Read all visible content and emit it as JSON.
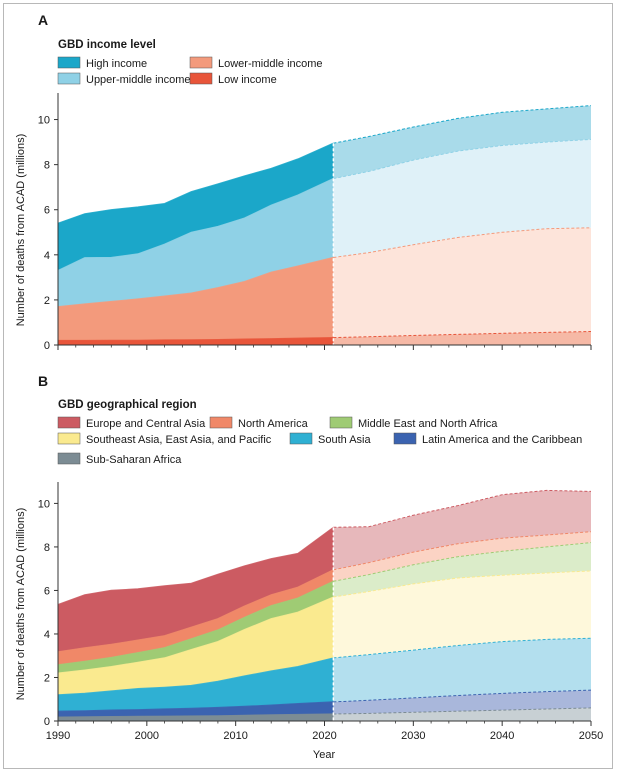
{
  "chart_data": [
    {
      "panel": "A",
      "type": "area",
      "stacked": true,
      "legend_title": "GBD income level",
      "ylabel": "Number of deaths from ACAD (millions)",
      "ylim": [
        0,
        11
      ],
      "yticks": [
        "0",
        "2",
        "4",
        "6",
        "8",
        "10"
      ],
      "projection_start": 2021,
      "x": [
        1990,
        1993,
        1996,
        1999,
        2002,
        2005,
        2008,
        2011,
        2014,
        2017,
        2021,
        2025,
        2030,
        2035,
        2040,
        2045,
        2050
      ],
      "series": [
        {
          "name": "Low income",
          "color": "#e8553a",
          "projection_color": "#f6b9a6",
          "values": [
            0.2,
            0.2,
            0.21,
            0.21,
            0.22,
            0.23,
            0.24,
            0.26,
            0.28,
            0.3,
            0.33,
            0.37,
            0.42,
            0.47,
            0.52,
            0.56,
            0.6
          ]
        },
        {
          "name": "Lower-middle income",
          "color": "#f39a7c",
          "projection_color": "#fde4da",
          "values": [
            1.5,
            1.62,
            1.72,
            1.83,
            1.95,
            2.07,
            2.3,
            2.55,
            2.95,
            3.2,
            3.55,
            3.73,
            4.03,
            4.3,
            4.48,
            4.6,
            4.6
          ]
        },
        {
          "name": "Upper-middle income",
          "color": "#8fd1e6",
          "projection_color": "#dff1f8",
          "values": [
            1.6,
            2.05,
            1.95,
            2.0,
            2.3,
            2.7,
            2.72,
            2.82,
            2.97,
            3.15,
            3.5,
            3.6,
            3.75,
            3.83,
            3.85,
            3.84,
            3.92
          ]
        },
        {
          "name": "High income",
          "color": "#1ba7c9",
          "projection_color": "#a9dbea",
          "values": [
            2.1,
            1.95,
            2.12,
            2.08,
            1.8,
            1.8,
            1.88,
            1.87,
            1.63,
            1.6,
            1.57,
            1.55,
            1.47,
            1.45,
            1.47,
            1.47,
            1.5
          ]
        }
      ]
    },
    {
      "panel": "B",
      "type": "area",
      "stacked": true,
      "legend_title": "GBD geographical region",
      "xlabel": "Year",
      "ylabel": "Number of deaths from ACAD (millions)",
      "ylim": [
        0,
        10.8
      ],
      "yticks": [
        "0",
        "2",
        "4",
        "6",
        "8",
        "10"
      ],
      "xticks": [
        "1990",
        "2000",
        "2010",
        "2020",
        "2030",
        "2040",
        "2050"
      ],
      "projection_start": 2021,
      "x": [
        1990,
        1993,
        1996,
        1999,
        2002,
        2005,
        2008,
        2011,
        2014,
        2017,
        2021,
        2025,
        2030,
        2035,
        2040,
        2045,
        2050
      ],
      "series": [
        {
          "name": "Sub-Saharan Africa",
          "color": "#7c8c94",
          "projection_color": "#c8d0d4",
          "values": [
            0.18,
            0.19,
            0.2,
            0.21,
            0.22,
            0.23,
            0.24,
            0.26,
            0.28,
            0.3,
            0.32,
            0.35,
            0.4,
            0.45,
            0.5,
            0.55,
            0.6
          ]
        },
        {
          "name": "Latin America and the Caribbean",
          "color": "#3b63b0",
          "projection_color": "#a9b7db",
          "values": [
            0.27,
            0.28,
            0.3,
            0.31,
            0.33,
            0.35,
            0.38,
            0.41,
            0.45,
            0.5,
            0.56,
            0.6,
            0.66,
            0.72,
            0.77,
            0.8,
            0.82
          ]
        },
        {
          "name": "South Asia",
          "color": "#2fb0d3",
          "projection_color": "#b3dfee",
          "values": [
            0.75,
            0.8,
            0.88,
            0.97,
            1.0,
            1.05,
            1.2,
            1.4,
            1.57,
            1.7,
            2.02,
            2.1,
            2.2,
            2.3,
            2.38,
            2.4,
            2.38
          ]
        },
        {
          "name": "Southeast Asia, East Asia, and Pacific",
          "color": "#faea8f",
          "projection_color": "#fef8db",
          "values": [
            1.0,
            1.07,
            1.12,
            1.21,
            1.35,
            1.65,
            1.83,
            2.13,
            2.4,
            2.5,
            2.8,
            2.9,
            3.04,
            3.1,
            3.05,
            3.05,
            3.1
          ]
        },
        {
          "name": "Middle East and North Africa",
          "color": "#9fcb74",
          "projection_color": "#dbecc9",
          "values": [
            0.38,
            0.4,
            0.42,
            0.44,
            0.47,
            0.5,
            0.53,
            0.56,
            0.6,
            0.65,
            0.72,
            0.78,
            0.88,
            0.98,
            1.1,
            1.2,
            1.3
          ]
        },
        {
          "name": "North America",
          "color": "#f08868",
          "projection_color": "#fbd3c4",
          "values": [
            0.6,
            0.62,
            0.6,
            0.58,
            0.55,
            0.53,
            0.52,
            0.52,
            0.5,
            0.5,
            0.53,
            0.55,
            0.58,
            0.6,
            0.6,
            0.55,
            0.5
          ]
        },
        {
          "name": "Europe and Central Asia",
          "color": "#cc5b62",
          "projection_color": "#e7b8bb",
          "values": [
            2.17,
            2.44,
            2.48,
            2.35,
            2.29,
            2.02,
            2.04,
            1.85,
            1.66,
            1.55,
            1.95,
            1.65,
            1.7,
            1.75,
            2.0,
            2.05,
            1.85
          ]
        }
      ]
    }
  ]
}
